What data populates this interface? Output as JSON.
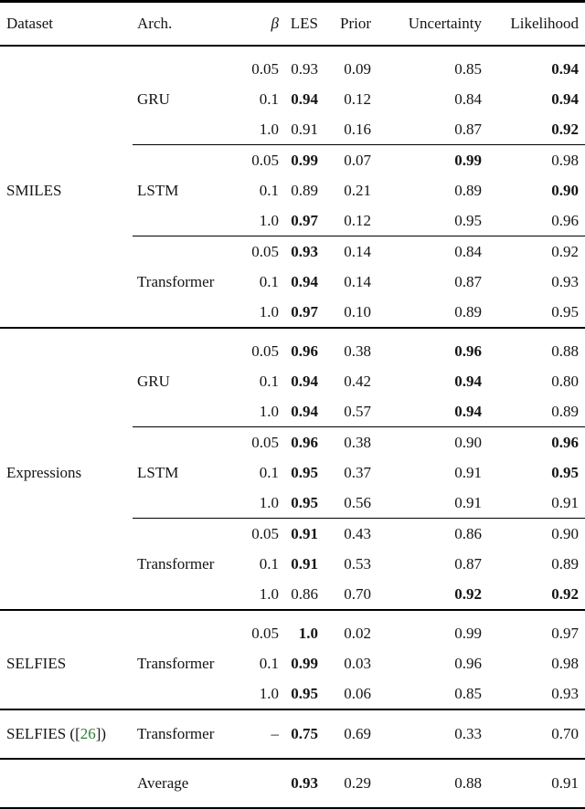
{
  "accent_colors": {
    "text": "#141414",
    "rule": "#000000",
    "citation_green": "#2e7d32"
  },
  "columns": [
    {
      "key": "dataset",
      "label": "Dataset"
    },
    {
      "key": "arch",
      "label": "Arch."
    },
    {
      "key": "beta",
      "label": "β"
    },
    {
      "key": "les",
      "label": "LES"
    },
    {
      "key": "prior",
      "label": "Prior"
    },
    {
      "key": "uncertainty",
      "label": "Uncertainty"
    },
    {
      "key": "likelihood",
      "label": "Likelihood"
    }
  ],
  "rows": [
    {
      "dataset": "",
      "arch": "",
      "beta": "0.05",
      "les": "0.93",
      "prior": "0.09",
      "uncertainty": "0.85",
      "likelihood": "0.94",
      "bold": [
        "likelihood"
      ],
      "cls": "padtop"
    },
    {
      "dataset": "",
      "arch": "GRU",
      "beta": "0.1",
      "les": "0.94",
      "prior": "0.12",
      "uncertainty": "0.84",
      "likelihood": "0.94",
      "bold": [
        "les",
        "likelihood"
      ],
      "cls": ""
    },
    {
      "dataset": "",
      "arch": "",
      "beta": "1.0",
      "les": "0.91",
      "prior": "0.16",
      "uncertainty": "0.87",
      "likelihood": "0.92",
      "bold": [
        "likelihood"
      ],
      "cls": "cmid"
    },
    {
      "dataset": "",
      "arch": "",
      "beta": "0.05",
      "les": "0.99",
      "prior": "0.07",
      "uncertainty": "0.99",
      "likelihood": "0.98",
      "bold": [
        "les",
        "uncertainty"
      ],
      "cls": ""
    },
    {
      "dataset": "SMILES",
      "arch": "LSTM",
      "beta": "0.1",
      "les": "0.89",
      "prior": "0.21",
      "uncertainty": "0.89",
      "likelihood": "0.90",
      "bold": [
        "likelihood"
      ],
      "cls": ""
    },
    {
      "dataset": "",
      "arch": "",
      "beta": "1.0",
      "les": "0.97",
      "prior": "0.12",
      "uncertainty": "0.95",
      "likelihood": "0.96",
      "bold": [
        "les"
      ],
      "cls": "cmid"
    },
    {
      "dataset": "",
      "arch": "",
      "beta": "0.05",
      "les": "0.93",
      "prior": "0.14",
      "uncertainty": "0.84",
      "likelihood": "0.92",
      "bold": [
        "les"
      ],
      "cls": ""
    },
    {
      "dataset": "",
      "arch": "Transformer",
      "beta": "0.1",
      "les": "0.94",
      "prior": "0.14",
      "uncertainty": "0.87",
      "likelihood": "0.93",
      "bold": [
        "les"
      ],
      "cls": ""
    },
    {
      "dataset": "",
      "arch": "",
      "beta": "1.0",
      "les": "0.97",
      "prior": "0.10",
      "uncertainty": "0.89",
      "likelihood": "0.95",
      "bold": [
        "les"
      ],
      "cls": "full"
    },
    {
      "dataset": "",
      "arch": "",
      "beta": "0.05",
      "les": "0.96",
      "prior": "0.38",
      "uncertainty": "0.96",
      "likelihood": "0.88",
      "bold": [
        "les",
        "uncertainty"
      ],
      "cls": "padtop"
    },
    {
      "dataset": "",
      "arch": "GRU",
      "beta": "0.1",
      "les": "0.94",
      "prior": "0.42",
      "uncertainty": "0.94",
      "likelihood": "0.80",
      "bold": [
        "les",
        "uncertainty"
      ],
      "cls": ""
    },
    {
      "dataset": "",
      "arch": "",
      "beta": "1.0",
      "les": "0.94",
      "prior": "0.57",
      "uncertainty": "0.94",
      "likelihood": "0.89",
      "bold": [
        "les",
        "uncertainty"
      ],
      "cls": "cmid"
    },
    {
      "dataset": "",
      "arch": "",
      "beta": "0.05",
      "les": "0.96",
      "prior": "0.38",
      "uncertainty": "0.90",
      "likelihood": "0.96",
      "bold": [
        "les",
        "likelihood"
      ],
      "cls": ""
    },
    {
      "dataset": "Expressions",
      "arch": "LSTM",
      "beta": "0.1",
      "les": "0.95",
      "prior": "0.37",
      "uncertainty": "0.91",
      "likelihood": "0.95",
      "bold": [
        "les",
        "likelihood"
      ],
      "cls": ""
    },
    {
      "dataset": "",
      "arch": "",
      "beta": "1.0",
      "les": "0.95",
      "prior": "0.56",
      "uncertainty": "0.91",
      "likelihood": "0.91",
      "bold": [
        "les"
      ],
      "cls": "cmid"
    },
    {
      "dataset": "",
      "arch": "",
      "beta": "0.05",
      "les": "0.91",
      "prior": "0.43",
      "uncertainty": "0.86",
      "likelihood": "0.90",
      "bold": [
        "les"
      ],
      "cls": ""
    },
    {
      "dataset": "",
      "arch": "Transformer",
      "beta": "0.1",
      "les": "0.91",
      "prior": "0.53",
      "uncertainty": "0.87",
      "likelihood": "0.89",
      "bold": [
        "les"
      ],
      "cls": ""
    },
    {
      "dataset": "",
      "arch": "",
      "beta": "1.0",
      "les": "0.86",
      "prior": "0.70",
      "uncertainty": "0.92",
      "likelihood": "0.92",
      "bold": [
        "uncertainty",
        "likelihood"
      ],
      "cls": "full"
    },
    {
      "dataset": "",
      "arch": "",
      "beta": "0.05",
      "les": "1.0",
      "prior": "0.02",
      "uncertainty": "0.99",
      "likelihood": "0.97",
      "bold": [
        "les"
      ],
      "cls": "padtop"
    },
    {
      "dataset": "SELFIES",
      "arch": "Transformer",
      "beta": "0.1",
      "les": "0.99",
      "prior": "0.03",
      "uncertainty": "0.96",
      "likelihood": "0.98",
      "bold": [
        "les"
      ],
      "cls": ""
    },
    {
      "dataset": "",
      "arch": "",
      "beta": "1.0",
      "les": "0.95",
      "prior": "0.06",
      "uncertainty": "0.85",
      "likelihood": "0.93",
      "bold": [
        "les"
      ],
      "cls": "full"
    },
    {
      "dataset_pre": "SELFIES ([",
      "cite": "26",
      "dataset_post": "])",
      "arch": "Transformer",
      "beta": "–",
      "les": "0.75",
      "prior": "0.69",
      "uncertainty": "0.33",
      "likelihood": "0.70",
      "bold": [
        "les"
      ],
      "cls": "tall full"
    },
    {
      "dataset": "",
      "arch": "Average",
      "beta": "",
      "les": "0.93",
      "prior": "0.29",
      "uncertainty": "0.88",
      "likelihood": "0.91",
      "bold": [
        "les"
      ],
      "cls": "tall"
    }
  ]
}
